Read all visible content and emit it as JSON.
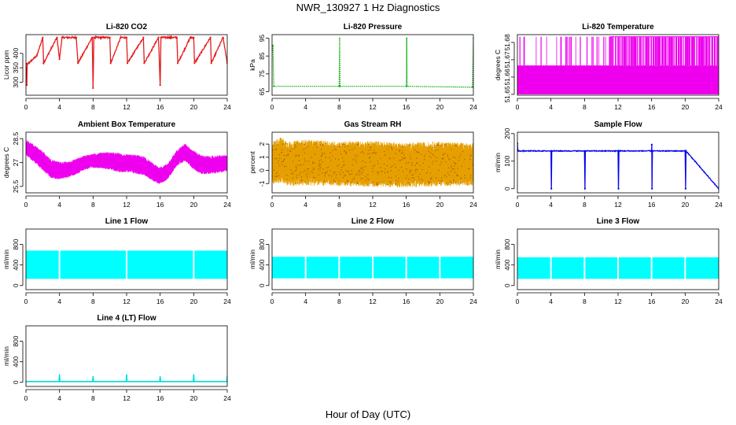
{
  "figure": {
    "title": "NWR_130927  1 Hz Diagnostics",
    "xlabel": "Hour of Day (UTC)"
  },
  "chart_data": [
    {
      "type": "line",
      "title": "Li-820 CO2",
      "ylabel": "Licor ppm",
      "color": "#e41a1c",
      "xlim": [
        0,
        24
      ],
      "ylim": [
        255,
        465
      ],
      "xticks": [
        0,
        4,
        8,
        12,
        16,
        20,
        24
      ],
      "yticks": [
        300,
        350,
        400
      ],
      "series": [
        {
          "baseline": 366,
          "noise": 6,
          "x": [
            0,
            0.1,
            0.15,
            1.3,
            2,
            2.1,
            3.7,
            4,
            4.3,
            6,
            6.2,
            7.9,
            8,
            8.1,
            10,
            10.1,
            11.3,
            12,
            12.1,
            14,
            14.1,
            15.8,
            16,
            16.1,
            18,
            18.1,
            19.6,
            20,
            20.1,
            22,
            22.1,
            23.5,
            24
          ],
          "y": [
            366,
            290,
            362,
            392,
            455,
            366,
            455,
            380,
            455,
            455,
            366,
            455,
            280,
            455,
            455,
            366,
            455,
            455,
            366,
            455,
            366,
            455,
            290,
            455,
            455,
            366,
            455,
            455,
            366,
            455,
            366,
            455,
            366
          ]
        }
      ]
    },
    {
      "type": "line",
      "title": "Li-820 Pressure",
      "ylabel": "kPa",
      "color": "#00aa00",
      "xlim": [
        0,
        24
      ],
      "ylim": [
        63,
        97
      ],
      "xticks": [
        0,
        4,
        8,
        12,
        16,
        20,
        24
      ],
      "yticks": [
        65,
        75,
        85,
        95
      ],
      "series": [
        {
          "baseline": 67.8,
          "noise": 0.2,
          "x": [
            0,
            0.1,
            0.2,
            8,
            8.05,
            8.1,
            16,
            16.05,
            16.1,
            23.9,
            24
          ],
          "y": [
            88,
            91,
            68,
            68,
            95,
            68,
            68,
            95,
            68,
            67.5,
            95
          ]
        }
      ]
    },
    {
      "type": "line",
      "title": "Li-820 Temperature",
      "ylabel": "degrees C",
      "color": "#ee00ee",
      "xlim": [
        0,
        24
      ],
      "ylim": [
        51.6495,
        51.6845
      ],
      "xticks": [
        0,
        4,
        8,
        12,
        16,
        20,
        24
      ],
      "yticks": [
        51.65,
        51.66,
        51.67,
        51.68
      ],
      "series": [
        {
          "levels": [
            51.65,
            51.6667
          ],
          "high_level": 51.6833,
          "dense_high_from": 11,
          "x": [
            0,
            0.3,
            0.8,
            5.2,
            5.8,
            6.4,
            7.5,
            8.3,
            8.9,
            9.5,
            10.3,
            11,
            14,
            17,
            22,
            24
          ],
          "y": [
            51.65,
            51.6833,
            51.6833,
            51.6833,
            51.6833,
            51.6833,
            51.6833,
            51.6833,
            51.6833,
            51.6833,
            51.6833,
            51.6833,
            51.6833,
            51.6833,
            51.6833,
            51.6833
          ]
        }
      ]
    },
    {
      "type": "area",
      "title": "Ambient Box Temperature",
      "ylabel": "degrees C",
      "color": "#ee00ee",
      "xlim": [
        0,
        24
      ],
      "ylim": [
        25.1,
        28.9
      ],
      "xticks": [
        0,
        4,
        8,
        12,
        16,
        20,
        24
      ],
      "yticks": [
        25.5,
        27.0,
        28.5
      ],
      "series": [
        {
          "x": [
            0,
            1,
            2,
            3,
            4,
            5,
            6,
            7,
            8,
            9,
            10,
            11,
            12,
            13,
            14,
            15,
            16,
            17,
            18,
            19,
            20,
            21,
            22,
            23,
            24
          ],
          "y": [
            27.95,
            27.55,
            27.1,
            26.6,
            26.5,
            26.55,
            26.75,
            27.0,
            27.1,
            27.15,
            27.1,
            27.0,
            26.95,
            26.9,
            26.8,
            26.45,
            26.15,
            26.5,
            27.3,
            27.65,
            27.15,
            26.85,
            26.85,
            26.9,
            26.95
          ],
          "band": [
            0.5,
            0.55,
            0.6,
            0.6,
            0.55,
            0.5,
            0.5,
            0.45,
            0.45,
            0.5,
            0.55,
            0.6,
            0.55,
            0.6,
            0.6,
            0.55,
            0.55,
            0.5,
            0.5,
            0.55,
            0.6,
            0.6,
            0.55,
            0.55,
            0.5
          ]
        }
      ]
    },
    {
      "type": "area",
      "title": "Gas Stream RH",
      "ylabel": "percent",
      "color": "#e69f00",
      "color2": "#b06000",
      "xlim": [
        0,
        24
      ],
      "ylim": [
        -1.7,
        2.9
      ],
      "xticks": [
        0,
        4,
        8,
        12,
        16,
        20,
        24
      ],
      "yticks": [
        -1,
        0,
        1,
        2
      ],
      "series": [
        {
          "x": [
            0,
            1,
            2,
            4,
            8,
            12,
            16,
            20,
            24
          ],
          "y": [
            0.6,
            0.8,
            0.5,
            0.6,
            0.5,
            0.5,
            0.4,
            0.5,
            0.45
          ],
          "band": [
            1.6,
            1.75,
            1.7,
            1.75,
            1.7,
            1.75,
            1.7,
            1.7,
            1.6
          ]
        }
      ]
    },
    {
      "type": "line",
      "title": "Sample Flow",
      "ylabel": "ml/min",
      "color": "#0000ee",
      "xlim": [
        0,
        24
      ],
      "ylim": [
        -15,
        205
      ],
      "xticks": [
        0,
        4,
        8,
        12,
        16,
        20,
        24
      ],
      "yticks": [
        0,
        100,
        200
      ],
      "series": [
        {
          "baseline": 137,
          "noise": 3,
          "x": [
            0,
            0.05,
            0.1,
            4,
            4.05,
            4.1,
            8,
            8.05,
            8.1,
            12,
            12.05,
            12.1,
            16,
            16.02,
            16.05,
            16.1,
            20,
            20.05,
            20.1,
            24
          ],
          "y": [
            165,
            140,
            137,
            137,
            0,
            137,
            137,
            0,
            137,
            137,
            0,
            137,
            137,
            160,
            0,
            137,
            137,
            0,
            137,
            0
          ]
        }
      ]
    },
    {
      "type": "area",
      "title": "Line 1 Flow",
      "ylabel": "ml/min",
      "color": "#00ffff",
      "xlim": [
        0,
        24
      ],
      "ylim": [
        -80,
        1100
      ],
      "xticks": [
        0,
        4,
        8,
        12,
        16,
        20,
        24
      ],
      "yticks": [
        0,
        400,
        800
      ],
      "series": [
        {
          "x": [
            0,
            24
          ],
          "y": [
            400,
            400
          ],
          "low": 130,
          "high": 680,
          "gaps": [
            4,
            12,
            20
          ]
        }
      ]
    },
    {
      "type": "area",
      "title": "Line 2 Flow",
      "ylabel": "ml/min",
      "color": "#00ffff",
      "xlim": [
        0,
        24
      ],
      "ylim": [
        -80,
        1100
      ],
      "xticks": [
        0,
        4,
        8,
        12,
        16,
        20,
        24
      ],
      "yticks": [
        0,
        400,
        800
      ],
      "series": [
        {
          "x": [
            0,
            24
          ],
          "y": [
            350,
            350
          ],
          "low": 140,
          "high": 560,
          "gaps": [
            4,
            8,
            12,
            16,
            20
          ]
        }
      ]
    },
    {
      "type": "area",
      "title": "Line 3 Flow",
      "ylabel": "ml/min",
      "color": "#00ffff",
      "xlim": [
        0,
        24
      ],
      "ylim": [
        -80,
        1100
      ],
      "xticks": [
        0,
        4,
        8,
        12,
        16,
        20,
        24
      ],
      "yticks": [
        0,
        400,
        800
      ],
      "series": [
        {
          "x": [
            0,
            24
          ],
          "y": [
            340,
            340
          ],
          "low": 130,
          "high": 550,
          "gaps": [
            4,
            8,
            12,
            16,
            20
          ]
        }
      ]
    },
    {
      "type": "line",
      "title": "Line 4 (LT) Flow",
      "ylabel": "ml/min",
      "color": "#00dddd",
      "xlim": [
        0,
        24
      ],
      "ylim": [
        -80,
        1100
      ],
      "xticks": [
        0,
        4,
        8,
        12,
        16,
        20,
        24
      ],
      "yticks": [
        0,
        400,
        800
      ],
      "series": [
        {
          "baseline": 15,
          "noise": 0,
          "x": [
            0,
            3.95,
            4,
            4.05,
            7.95,
            8,
            8.05,
            11.95,
            12,
            12.05,
            15.95,
            16,
            16.05,
            19.95,
            20,
            20.05,
            23.95,
            24
          ],
          "y": [
            15,
            15,
            150,
            15,
            15,
            110,
            15,
            15,
            150,
            15,
            15,
            110,
            15,
            15,
            150,
            15,
            15,
            110
          ]
        }
      ]
    }
  ]
}
